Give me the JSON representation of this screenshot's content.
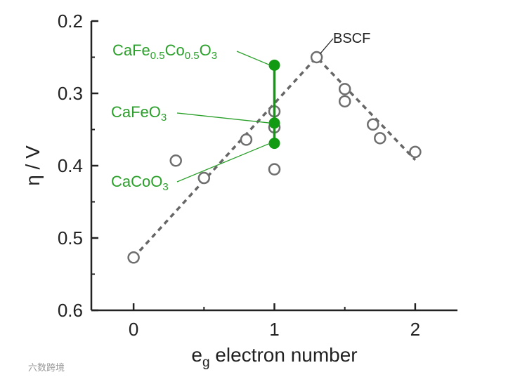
{
  "chart_data": {
    "type": "scatter",
    "xlabel": {
      "main": "e",
      "sub": "g",
      "rest": " electron number"
    },
    "ylabel": "η / V",
    "xlim": [
      -0.3,
      2.3
    ],
    "ylim": [
      0.2,
      0.6
    ],
    "y_inverted": true,
    "xticks": [
      0,
      1,
      2
    ],
    "yticks": [
      0.2,
      0.3,
      0.4,
      0.5,
      0.6
    ],
    "xtick_labels": [
      "0",
      "1",
      "2"
    ],
    "ytick_labels": [
      "0.2",
      "0.3",
      "0.4",
      "0.5",
      "0.6"
    ],
    "grid": false,
    "reference_points": [
      {
        "x": 0.0,
        "y": 0.527
      },
      {
        "x": 0.3,
        "y": 0.393
      },
      {
        "x": 0.5,
        "y": 0.417
      },
      {
        "x": 0.8,
        "y": 0.364
      },
      {
        "x": 1.0,
        "y": 0.325
      },
      {
        "x": 1.0,
        "y": 0.347
      },
      {
        "x": 1.0,
        "y": 0.405
      },
      {
        "x": 1.3,
        "y": 0.25
      },
      {
        "x": 1.5,
        "y": 0.294
      },
      {
        "x": 1.5,
        "y": 0.311
      },
      {
        "x": 1.7,
        "y": 0.343
      },
      {
        "x": 1.75,
        "y": 0.362
      },
      {
        "x": 2.0,
        "y": 0.381
      }
    ],
    "trend_line": [
      {
        "x": 0.0,
        "y": 0.527
      },
      {
        "x": 1.3,
        "y": 0.25
      },
      {
        "x": 2.0,
        "y": 0.392
      }
    ],
    "highlight_points": [
      {
        "x": 1.0,
        "y": 0.261
      },
      {
        "x": 1.0,
        "y": 0.341
      },
      {
        "x": 1.0,
        "y": 0.369
      }
    ],
    "colors": {
      "reference": "#6e6e6e",
      "highlight": "#139a13",
      "annotation": "#2aa02a"
    },
    "annotations": [
      {
        "id": "cafecoo",
        "parts": [
          [
            "CaFe",
            ""
          ],
          [
            "0.5",
            "sub"
          ],
          [
            "Co",
            ""
          ],
          [
            "0.5",
            "sub"
          ],
          [
            "O",
            ""
          ],
          [
            "3",
            "sub"
          ]
        ],
        "x": 1.0,
        "y": 0.261
      },
      {
        "id": "cafeo",
        "parts": [
          [
            "CaFeO",
            ""
          ],
          [
            "3",
            "sub"
          ]
        ],
        "x": 1.0,
        "y": 0.341
      },
      {
        "id": "cacoo",
        "parts": [
          [
            "CaCoO",
            ""
          ],
          [
            "3",
            "sub"
          ]
        ],
        "x": 1.0,
        "y": 0.369
      },
      {
        "id": "bscf",
        "parts": [
          [
            "BSCF",
            ""
          ]
        ],
        "x": 1.3,
        "y": 0.25
      }
    ]
  },
  "watermark": "六数跨境"
}
